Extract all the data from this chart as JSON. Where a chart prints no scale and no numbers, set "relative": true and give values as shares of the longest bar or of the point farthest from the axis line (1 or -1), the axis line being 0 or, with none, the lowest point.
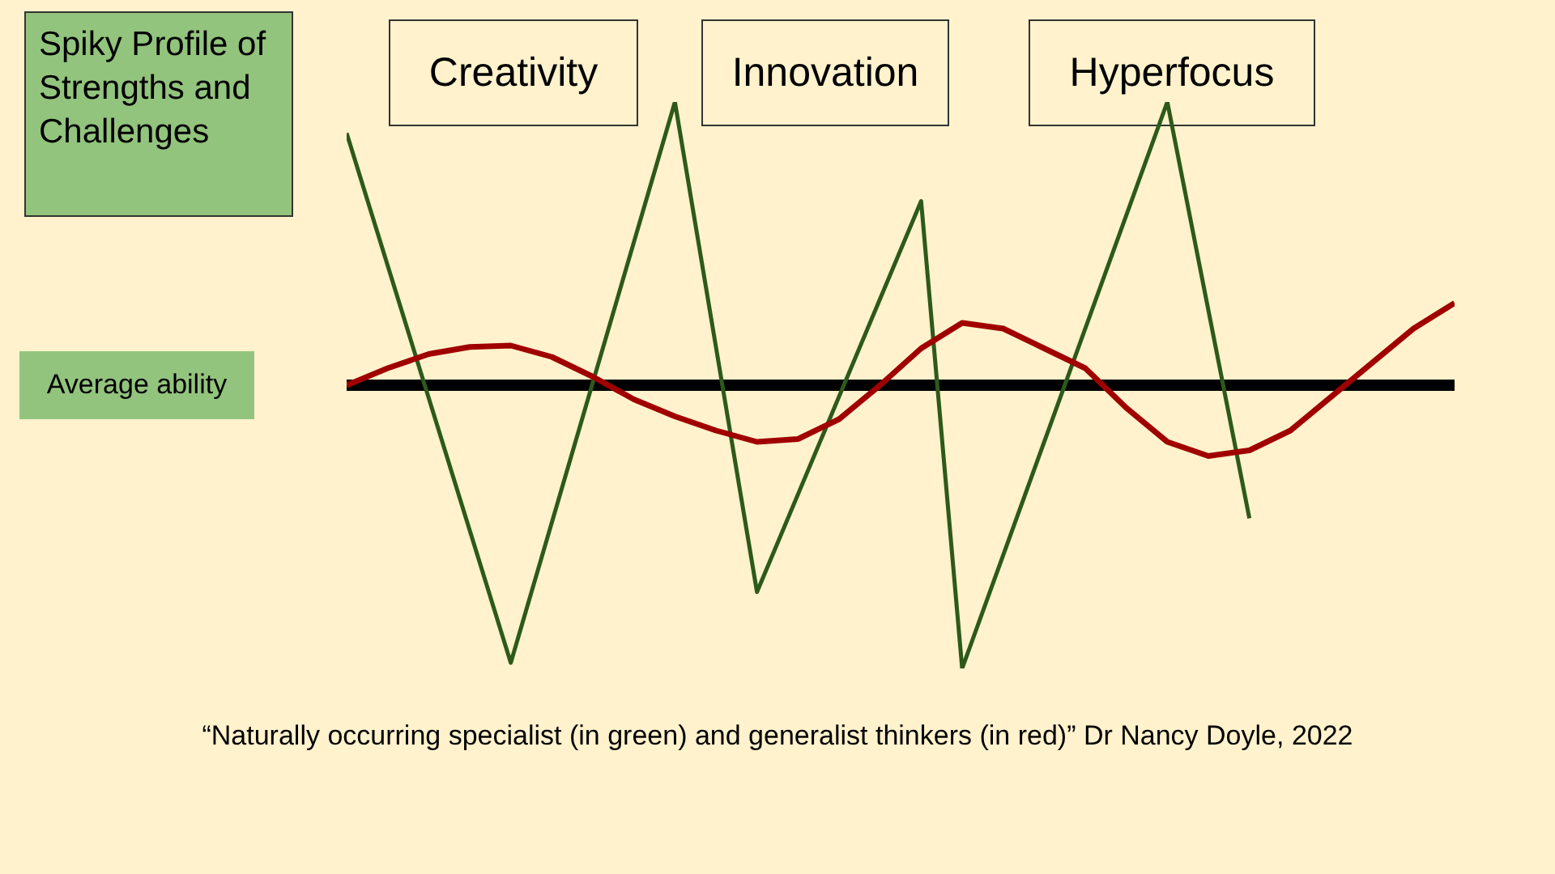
{
  "chart_data": {
    "type": "line",
    "title": "Spiky Profile of Strengths and Challenges",
    "relative": true,
    "tick_labels": false,
    "marker": "none",
    "line_style": "solid",
    "categories": [
      null,
      null,
      null,
      null,
      null,
      null,
      null,
      null,
      null,
      null,
      null,
      null,
      null,
      null,
      null,
      null,
      null,
      null,
      null,
      null,
      null,
      null,
      null,
      null,
      null,
      null,
      null,
      null
    ],
    "series": [
      {
        "color": "#2d5a1b",
        "values": [
          0.89,
          null,
          null,
          null,
          -0.98,
          null,
          null,
          null,
          1,
          null,
          -0.73,
          null,
          null,
          null,
          0.65,
          -1,
          null,
          null,
          null,
          null,
          1,
          null,
          -0.47,
          null,
          null,
          null,
          null,
          null
        ]
      },
      {
        "color": "#a00000",
        "values": [
          0,
          0.06,
          0.11,
          0.135,
          0.14,
          0.1,
          0.03,
          -0.05,
          -0.11,
          -0.16,
          -0.2,
          -0.19,
          -0.12,
          0,
          0.13,
          0.22,
          0.2,
          0.13,
          0.06,
          -0.08,
          -0.2,
          -0.25,
          -0.23,
          -0.16,
          -0.04,
          0.08,
          0.2,
          0.29
        ]
      }
    ],
    "ref_lines": [
      {
        "axis": "y",
        "value": 0,
        "label": "Average ability",
        "color": "#000000"
      }
    ],
    "annotations": [
      "Creativity",
      "Innovation",
      "Hyperfocus",
      "“Naturally occurring specialist (in green) and generalist thinkers (in red)” Dr Nancy Doyle, 2022"
    ]
  }
}
